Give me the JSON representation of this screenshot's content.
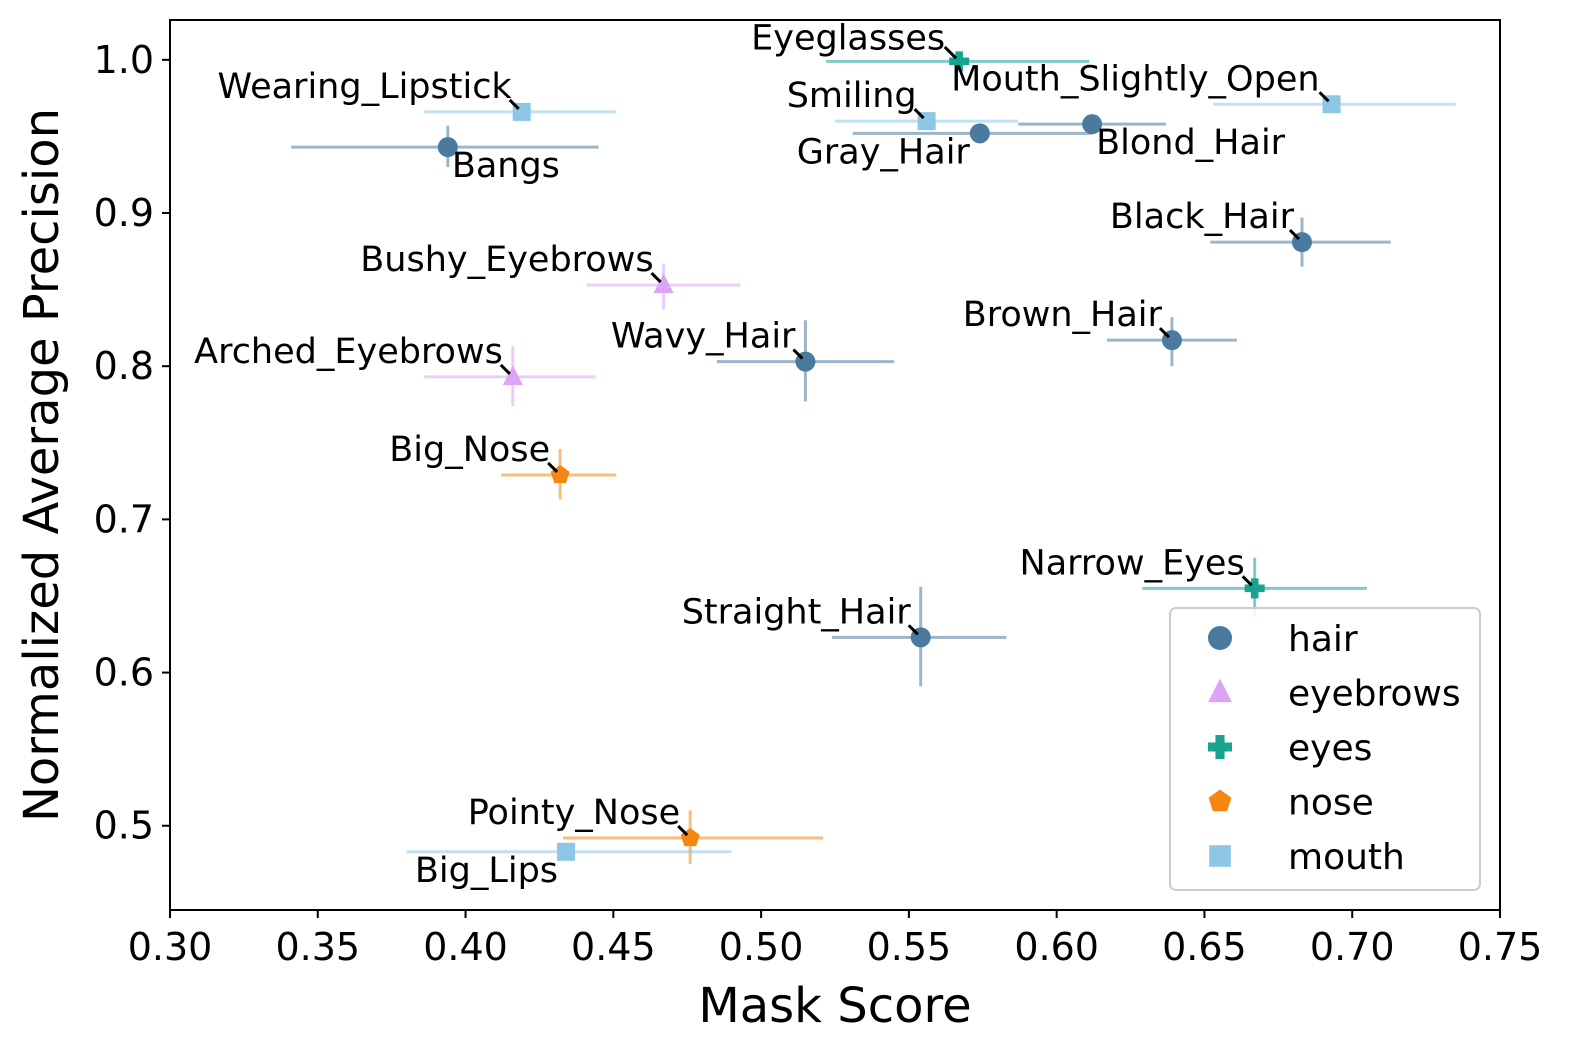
{
  "chart_data": {
    "type": "scatter",
    "title": "",
    "xlabel": "Mask Score",
    "ylabel": "Normalized Average Precision",
    "xlim": [
      0.3,
      0.75
    ],
    "ylim": [
      0.445,
      1.026
    ],
    "xticks": [
      "0.30",
      "0.35",
      "0.40",
      "0.45",
      "0.50",
      "0.55",
      "0.60",
      "0.65",
      "0.70",
      "0.75"
    ],
    "yticks": [
      "0.5",
      "0.6",
      "0.7",
      "0.8",
      "0.9",
      "1.0"
    ],
    "legend": {
      "placement": "lower-right",
      "entries": [
        {
          "name": "hair",
          "marker": "circle"
        },
        {
          "name": "eyebrows",
          "marker": "triangle"
        },
        {
          "name": "eyes",
          "marker": "plus"
        },
        {
          "name": "nose",
          "marker": "pentagon"
        },
        {
          "name": "mouth",
          "marker": "square"
        }
      ]
    },
    "colors": {
      "hair": "#4a7a9d",
      "eyebrows": "#dba4f5",
      "eyes": "#16a38f",
      "nose": "#f5860f",
      "mouth": "#8ec6e6"
    },
    "points": [
      {
        "name": "Eyeglasses",
        "group": "eyes",
        "x": 0.567,
        "y": 0.999,
        "xerr": [
          0.522,
          0.611
        ],
        "yerr": null
      },
      {
        "name": "Mouth_Slightly_Open",
        "group": "mouth",
        "x": 0.693,
        "y": 0.971,
        "xerr": [
          0.653,
          0.735
        ],
        "yerr": null
      },
      {
        "name": "Wearing_Lipstick",
        "group": "mouth",
        "x": 0.419,
        "y": 0.966,
        "xerr": [
          0.386,
          0.451
        ],
        "yerr": null
      },
      {
        "name": "Smiling",
        "group": "mouth",
        "x": 0.556,
        "y": 0.96,
        "xerr": [
          0.525,
          0.587
        ],
        "yerr": null
      },
      {
        "name": "Blond_Hair",
        "group": "hair",
        "x": 0.612,
        "y": 0.958,
        "xerr": [
          0.587,
          0.637
        ],
        "yerr": null
      },
      {
        "name": "Gray_Hair",
        "group": "hair",
        "x": 0.574,
        "y": 0.952,
        "xerr": [
          0.531,
          0.612
        ],
        "yerr": null
      },
      {
        "name": "Bangs",
        "group": "hair",
        "x": 0.394,
        "y": 0.943,
        "xerr": [
          0.341,
          0.445
        ],
        "yerr": [
          0.93,
          0.957
        ]
      },
      {
        "name": "Black_Hair",
        "group": "hair",
        "x": 0.683,
        "y": 0.881,
        "xerr": [
          0.652,
          0.713
        ],
        "yerr": [
          0.865,
          0.897
        ]
      },
      {
        "name": "Bushy_Eyebrows",
        "group": "eyebrows",
        "x": 0.467,
        "y": 0.853,
        "xerr": [
          0.441,
          0.493
        ],
        "yerr": [
          0.837,
          0.867
        ]
      },
      {
        "name": "Brown_Hair",
        "group": "hair",
        "x": 0.639,
        "y": 0.817,
        "xerr": [
          0.617,
          0.661
        ],
        "yerr": [
          0.8,
          0.832
        ]
      },
      {
        "name": "Wavy_Hair",
        "group": "hair",
        "x": 0.515,
        "y": 0.803,
        "xerr": [
          0.485,
          0.545
        ],
        "yerr": [
          0.777,
          0.83
        ]
      },
      {
        "name": "Arched_Eyebrows",
        "group": "eyebrows",
        "x": 0.416,
        "y": 0.793,
        "xerr": [
          0.386,
          0.444
        ],
        "yerr": [
          0.774,
          0.813
        ]
      },
      {
        "name": "Big_Nose",
        "group": "nose",
        "x": 0.432,
        "y": 0.729,
        "xerr": [
          0.412,
          0.451
        ],
        "yerr": [
          0.713,
          0.746
        ]
      },
      {
        "name": "Narrow_Eyes",
        "group": "eyes",
        "x": 0.667,
        "y": 0.655,
        "xerr": [
          0.629,
          0.705
        ],
        "yerr": [
          0.636,
          0.675
        ]
      },
      {
        "name": "Straight_Hair",
        "group": "hair",
        "x": 0.554,
        "y": 0.623,
        "xerr": [
          0.524,
          0.583
        ],
        "yerr": [
          0.591,
          0.656
        ]
      },
      {
        "name": "Pointy_Nose",
        "group": "nose",
        "x": 0.476,
        "y": 0.492,
        "xerr": [
          0.433,
          0.521
        ],
        "yerr": [
          0.475,
          0.51
        ]
      },
      {
        "name": "Big_Lips",
        "group": "mouth",
        "x": 0.434,
        "y": 0.483,
        "xerr": [
          0.38,
          0.49
        ],
        "yerr": null
      }
    ]
  }
}
